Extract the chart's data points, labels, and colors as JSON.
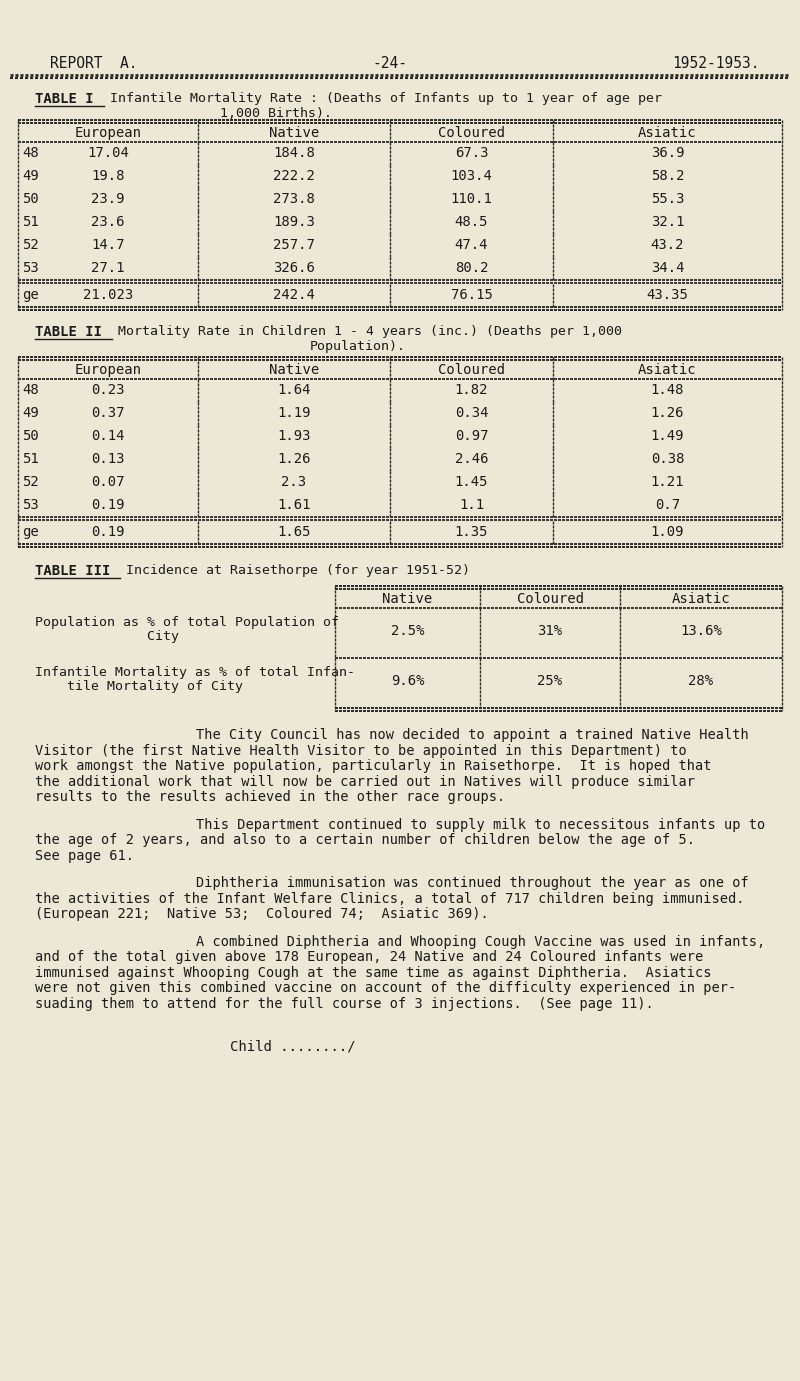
{
  "bg_color": "#ede8d5",
  "text_color": "#1a1a1a",
  "table1_headers": [
    "European",
    "Native",
    "Coloured",
    "Asiatic"
  ],
  "table1_years": [
    "48",
    "49",
    "50",
    "51",
    "52",
    "53",
    "ge"
  ],
  "table1_data": [
    [
      "17.04",
      "184.8",
      "67.3",
      "36.9"
    ],
    [
      "19.8",
      "222.2",
      "103.4",
      "58.2"
    ],
    [
      "23.9",
      "273.8",
      "110.1",
      "55.3"
    ],
    [
      "23.6",
      "189.3",
      "48.5",
      "32.1"
    ],
    [
      "14.7",
      "257.7",
      "47.4",
      "43.2"
    ],
    [
      "27.1",
      "326.6",
      "80.2",
      "34.4"
    ],
    [
      "21.023",
      "242.4",
      "76.15",
      "43.35"
    ]
  ],
  "table2_headers": [
    "European",
    "Native",
    "Coloured",
    "Asiatic"
  ],
  "table2_years": [
    "48",
    "49",
    "50",
    "51",
    "52",
    "53",
    "ge"
  ],
  "table2_data": [
    [
      "0.23",
      "1.64",
      "1.82",
      "1.48"
    ],
    [
      "0.37",
      "1.19",
      "0.34",
      "1.26"
    ],
    [
      "0.14",
      "1.93",
      "0.97",
      "1.49"
    ],
    [
      "0.13",
      "1.26",
      "2.46",
      "0.38"
    ],
    [
      "0.07",
      "2.3",
      "1.45",
      "1.21"
    ],
    [
      "0.19",
      "1.61",
      "1.1",
      "0.7"
    ],
    [
      "0.19",
      "1.65",
      "1.35",
      "1.09"
    ]
  ],
  "table3_row1_data": [
    "2.5%",
    "31%",
    "13.6%"
  ],
  "table3_row2_data": [
    "9.6%",
    "25%",
    "28%"
  ],
  "para1_indent": "        The City Council has now decided to appoint a trained Native Health",
  "para1_lines": [
    "Visitor (the first Native Health Visitor to be appointed in this Department) to",
    "work amongst the Native population, particularly in Raisethorpe.  It is hoped that",
    "the additional work that will now be carried out in Natives will produce similar",
    "results to the results achieved in the other race groups."
  ],
  "para2_indent": "        This Department continued to supply milk to necessitous infants up to",
  "para2_lines": [
    "the age of 2 years, and also to a certain number of children below the age of 5.",
    "See page 61."
  ],
  "para3_indent": "        Diphtheria immunisation was continued throughout the year as one of",
  "para3_lines": [
    "the activities of the Infant Welfare Clinics, a total of 717 children being immunised.",
    "(European 221;  Native 53;  Coloured 74;  Asiatic 369)."
  ],
  "para4_indent": "        A combined Diphtheria and Whooping Cough Vaccine was used in infants,",
  "para4_lines": [
    "and of the total given above 178 European, 24 Native and 24 Coloured infants were",
    "immunised against Whooping Cough at the same time as against Diphtheria.  Asiatics",
    "were not given this combined vaccine on account of the difficulty experienced in per-",
    "suading them to attend for the full course of 3 injections.  (See page 11)."
  ],
  "footer": "Child ......../",
  "dot_color": "#2a2a2a",
  "line_color": "#1a1a1a"
}
